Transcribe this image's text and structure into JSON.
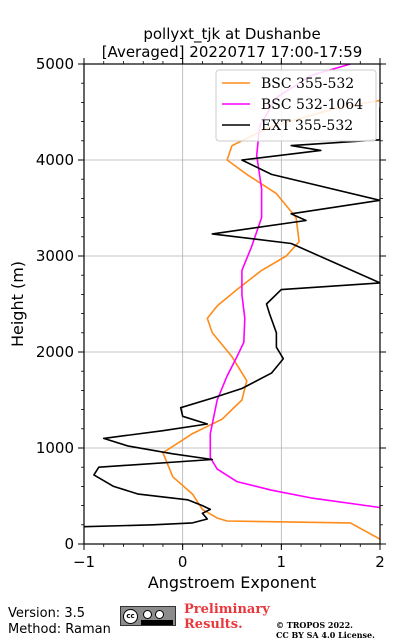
{
  "chart_data": {
    "type": "line",
    "title": "pollyxt_tjk at Dushanbe",
    "subtitle": "[Averaged] 20220717 17:00-17:59",
    "xlabel": "Angstroem Exponent",
    "ylabel": "Height (m)",
    "xlim": [
      -1,
      2
    ],
    "ylim": [
      0,
      5000
    ],
    "xticks": [
      "−1",
      "0",
      "1",
      "2"
    ],
    "yticks": [
      "0",
      "1000",
      "2000",
      "3000",
      "4000",
      "5000"
    ],
    "grid": true,
    "legend_position": "top-right",
    "series": [
      {
        "name": "BSC 355-532",
        "color": "#ff8c1a",
        "points": [
          [
            2.0,
            50
          ],
          [
            1.7,
            220
          ],
          [
            0.45,
            240
          ],
          [
            0.35,
            270
          ],
          [
            0.3,
            300
          ],
          [
            0.2,
            360
          ],
          [
            0.1,
            520
          ],
          [
            -0.1,
            700
          ],
          [
            -0.2,
            950
          ],
          [
            0.1,
            1150
          ],
          [
            0.4,
            1300
          ],
          [
            0.6,
            1500
          ],
          [
            0.65,
            1700
          ],
          [
            0.5,
            1950
          ],
          [
            0.3,
            2200
          ],
          [
            0.25,
            2350
          ],
          [
            0.35,
            2480
          ],
          [
            0.55,
            2650
          ],
          [
            0.8,
            2850
          ],
          [
            1.05,
            3000
          ],
          [
            1.18,
            3150
          ],
          [
            1.15,
            3400
          ],
          [
            0.95,
            3650
          ],
          [
            0.65,
            3850
          ],
          [
            0.45,
            4000
          ],
          [
            0.5,
            4150
          ],
          [
            0.9,
            4350
          ],
          [
            1.6,
            4550
          ],
          [
            2.0,
            4620
          ]
        ]
      },
      {
        "name": "BSC 532-1064",
        "color": "#ff00ff",
        "points": [
          [
            2.0,
            380
          ],
          [
            1.3,
            480
          ],
          [
            0.9,
            560
          ],
          [
            0.55,
            650
          ],
          [
            0.35,
            780
          ],
          [
            0.28,
            900
          ],
          [
            0.28,
            1150
          ],
          [
            0.35,
            1500
          ],
          [
            0.45,
            1750
          ],
          [
            0.55,
            1950
          ],
          [
            0.62,
            2100
          ],
          [
            0.63,
            2350
          ],
          [
            0.6,
            2600
          ],
          [
            0.6,
            2850
          ],
          [
            0.7,
            3100
          ],
          [
            0.8,
            3400
          ],
          [
            0.8,
            3700
          ],
          [
            0.75,
            4050
          ],
          [
            0.78,
            4350
          ],
          [
            0.95,
            4650
          ],
          [
            1.3,
            4880
          ],
          [
            1.7,
            5000
          ]
        ]
      },
      {
        "name": "EXT 355-532",
        "color": "#000000",
        "points": [
          [
            -1.0,
            180
          ],
          [
            -0.3,
            200
          ],
          [
            0.1,
            220
          ],
          [
            0.25,
            260
          ],
          [
            0.2,
            320
          ],
          [
            0.28,
            360
          ],
          [
            0.2,
            400
          ],
          [
            0.05,
            460
          ],
          [
            -0.45,
            520
          ],
          [
            -0.7,
            600
          ],
          [
            -0.9,
            720
          ],
          [
            -0.85,
            800
          ],
          [
            0.3,
            880
          ],
          [
            -0.1,
            940
          ],
          [
            -0.55,
            1020
          ],
          [
            -0.8,
            1100
          ],
          [
            -0.2,
            1180
          ],
          [
            0.25,
            1250
          ],
          [
            0.0,
            1330
          ],
          [
            -0.02,
            1420
          ],
          [
            0.3,
            1520
          ],
          [
            0.6,
            1620
          ],
          [
            0.9,
            1780
          ],
          [
            1.02,
            1930
          ],
          [
            0.95,
            2050
          ],
          [
            0.95,
            2200
          ],
          [
            0.88,
            2400
          ],
          [
            0.85,
            2500
          ],
          [
            1.0,
            2650
          ],
          [
            2.0,
            2720
          ],
          [
            1.1,
            3130
          ],
          [
            0.3,
            3230
          ],
          [
            1.25,
            3370
          ],
          [
            1.1,
            3440
          ],
          [
            2.0,
            3580
          ],
          [
            0.9,
            3850
          ],
          [
            0.6,
            4000
          ],
          [
            1.4,
            4100
          ],
          [
            1.1,
            4150
          ],
          [
            2.0,
            4210
          ],
          [
            2.0,
            4550
          ]
        ]
      }
    ]
  },
  "footer": {
    "version": "Version: 3.5",
    "method": "Method: Raman",
    "preliminary_line1": "Preliminary",
    "preliminary_line2": "Results.",
    "copyright_line1": "© TROPOS 2022.",
    "copyright_line2": "CC BY SA 4.0 License."
  }
}
